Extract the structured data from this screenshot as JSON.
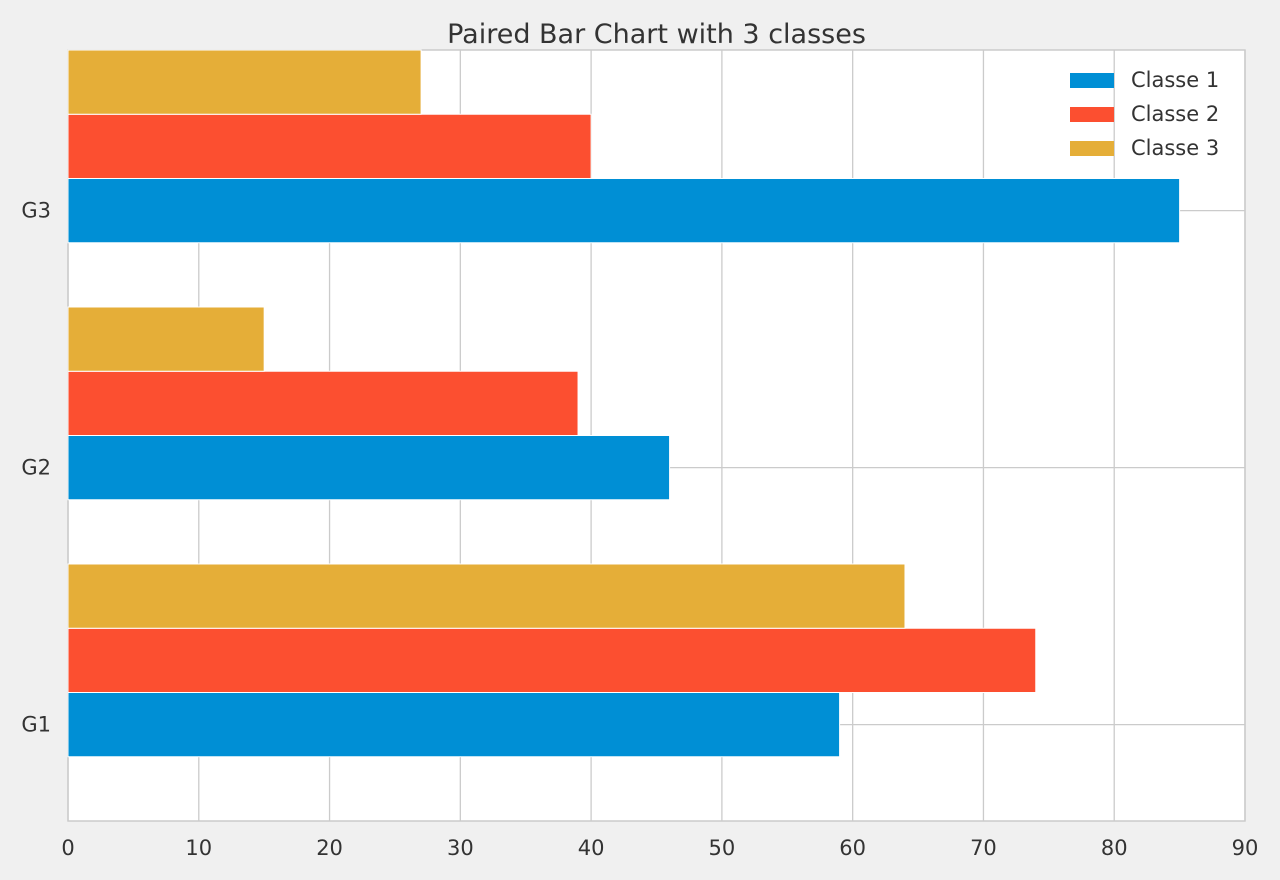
{
  "chart_data": {
    "type": "bar",
    "orientation": "horizontal",
    "title": "Paired Bar Chart with 3 classes",
    "xlabel": "",
    "ylabel": "",
    "categories": [
      "G1",
      "G2",
      "G3"
    ],
    "series": [
      {
        "name": "Classe 1",
        "values": [
          59,
          46,
          85
        ]
      },
      {
        "name": "Classe 2",
        "values": [
          74,
          39,
          40
        ]
      },
      {
        "name": "Classe 3",
        "values": [
          64,
          15,
          27
        ]
      }
    ],
    "xlim": [
      0,
      90
    ],
    "xticks": [
      0,
      10,
      20,
      30,
      40,
      50,
      60,
      70,
      80,
      90
    ],
    "grid": true,
    "legend_position": "top-right"
  },
  "colors": {
    "figure_background": "#f0f0f0",
    "axes_background": "#ffffff",
    "grid": "#cbcbcb",
    "text": "#333333",
    "series": [
      "#008fd5",
      "#fc4f30",
      "#e5ae38"
    ]
  }
}
